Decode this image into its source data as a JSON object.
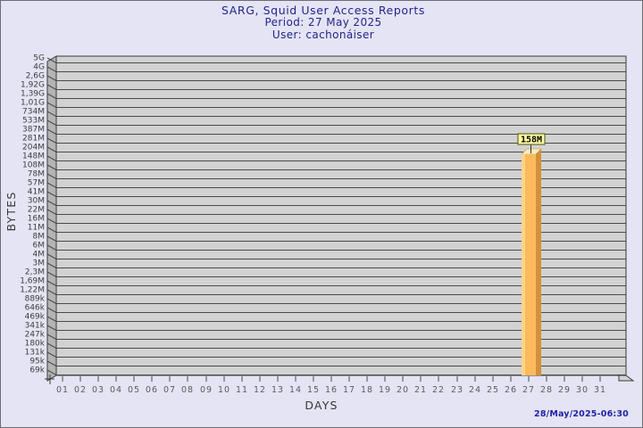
{
  "window": {
    "background": "#e4e4f4",
    "border": "#6e6e76"
  },
  "header": {
    "title": "SARG, Squid User Access Reports",
    "period": "Period: 27 May 2025",
    "user": "User: cachonáiser"
  },
  "footer": {
    "timestamp": "28/May/2025-06:30"
  },
  "chart_data": {
    "type": "bar",
    "title": "SARG, Squid User Access Reports",
    "subtitle": [
      "Period: 27 May 2025",
      "User: cachonáiser"
    ],
    "xlabel": "DAYS",
    "ylabel": "BYTES",
    "grid": "horizontal",
    "legend": "none",
    "x_tick_labels": [
      "01",
      "02",
      "03",
      "04",
      "05",
      "06",
      "07",
      "08",
      "09",
      "10",
      "11",
      "12",
      "13",
      "14",
      "15",
      "16",
      "17",
      "18",
      "19",
      "20",
      "21",
      "22",
      "23",
      "24",
      "25",
      "26",
      "27",
      "28",
      "29",
      "30",
      "31"
    ],
    "y_tick_labels": [
      "5G",
      "4G",
      "2,6G",
      "1,92G",
      "1,39G",
      "1,01G",
      "734M",
      "533M",
      "387M",
      "281M",
      "204M",
      "148M",
      "108M",
      "78M",
      "57M",
      "41M",
      "30M",
      "22M",
      "16M",
      "11M",
      "8M",
      "6M",
      "4M",
      "3M",
      "2,3M",
      "1,69M",
      "1,22M",
      "889k",
      "646k",
      "469k",
      "341k",
      "247k",
      "180k",
      "131k",
      "95k",
      "69k"
    ],
    "series": [
      {
        "name": "cachonáiser",
        "unit": "bytes",
        "points": [
          {
            "day": "27",
            "value": "158M"
          }
        ]
      }
    ],
    "bar": {
      "day": "27",
      "label": "158M"
    },
    "colors": {
      "plot_bg": "#d2d2d2",
      "wall": "#b4b4b4",
      "grid": "#4a4a4a",
      "frame_stroke": "#3a3a3a",
      "tick": "#4a4a4a",
      "bar_front": "#fbba5c",
      "bar_highlight": "#fdd488",
      "bar_side": "#d3913b",
      "bar_top": "#f7edc6",
      "annotation_bg": "#ffffa6",
      "annotation_border": "#6b6b24",
      "title_color": "#24248c",
      "timestamp_color": "#2222a8"
    }
  }
}
